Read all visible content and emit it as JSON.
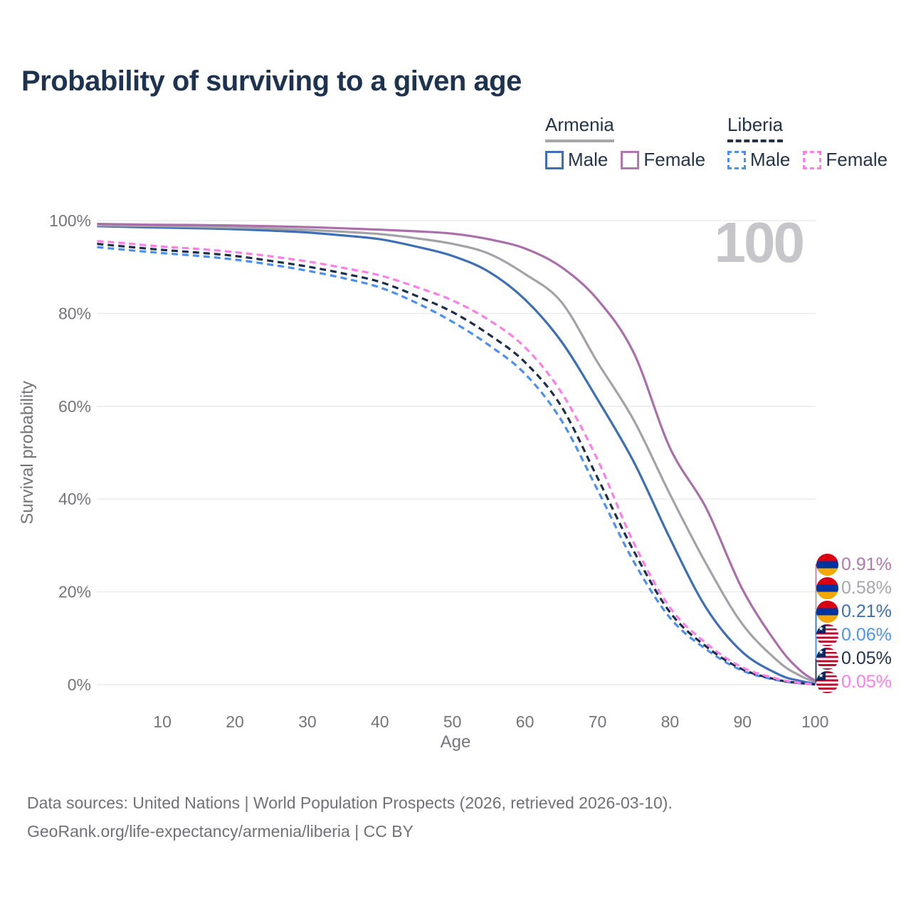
{
  "title": "Probability of surviving to a given age",
  "legend": {
    "groups": [
      {
        "name": "Armenia",
        "underline": {
          "style": "solid",
          "color": "#a7a6ab"
        },
        "items": [
          {
            "label": "Male",
            "color": "#3d6fb4",
            "dash": false
          },
          {
            "label": "Female",
            "color": "#b077af",
            "dash": false
          }
        ]
      },
      {
        "name": "Liberia",
        "underline": {
          "style": "dashed",
          "color": "#22304a"
        },
        "items": [
          {
            "label": "Male",
            "color": "#4b90ef",
            "dash": true
          },
          {
            "label": "Female",
            "color": "#fe7de9",
            "dash": true
          }
        ]
      }
    ]
  },
  "chart_data": {
    "type": "line",
    "title": "Probability of surviving to a given age",
    "xlabel": "Age",
    "ylabel": "Survival probability",
    "xlim": [
      0,
      100
    ],
    "ylim": [
      0,
      100
    ],
    "grid": "horizontal",
    "watermark": "100",
    "x_ticks": [
      10,
      20,
      30,
      40,
      50,
      60,
      70,
      80,
      90,
      100
    ],
    "y_ticks": [
      {
        "value": 0,
        "label": "0%"
      },
      {
        "value": 20,
        "label": "20%"
      },
      {
        "value": 40,
        "label": "40%"
      },
      {
        "value": 60,
        "label": "60%"
      },
      {
        "value": 80,
        "label": "80%"
      },
      {
        "value": 100,
        "label": "100%"
      }
    ],
    "series": [
      {
        "name": "Armenia Male",
        "country": "Armenia",
        "sex": "Male",
        "color": "#3d6fb4",
        "dash": false,
        "points": [
          [
            1,
            98.8
          ],
          [
            5,
            98.65
          ],
          [
            10,
            98.5
          ],
          [
            15,
            98.35
          ],
          [
            20,
            98.15
          ],
          [
            25,
            97.85
          ],
          [
            30,
            97.45
          ],
          [
            35,
            96.8
          ],
          [
            40,
            96.0
          ],
          [
            45,
            94.4
          ],
          [
            50,
            92.4
          ],
          [
            55,
            89.0
          ],
          [
            60,
            83.0
          ],
          [
            65,
            74.0
          ],
          [
            70,
            61.5
          ],
          [
            75,
            48.0
          ],
          [
            80,
            31.5
          ],
          [
            85,
            16.5
          ],
          [
            90,
            7.0
          ],
          [
            95,
            2.2
          ],
          [
            98,
            0.8
          ],
          [
            100,
            0.21
          ]
        ]
      },
      {
        "name": "Armenia Both sexes",
        "country": "Armenia",
        "sex": "Both",
        "color": "#a3a2a7",
        "dash": false,
        "points": [
          [
            1,
            99.0
          ],
          [
            5,
            98.9
          ],
          [
            10,
            98.8
          ],
          [
            15,
            98.65
          ],
          [
            20,
            98.5
          ],
          [
            25,
            98.3
          ],
          [
            30,
            98.0
          ],
          [
            35,
            97.6
          ],
          [
            40,
            97.1
          ],
          [
            45,
            96.2
          ],
          [
            50,
            95.0
          ],
          [
            55,
            92.9
          ],
          [
            60,
            88.5
          ],
          [
            65,
            82.5
          ],
          [
            70,
            69.5
          ],
          [
            75,
            57.0
          ],
          [
            80,
            41.0
          ],
          [
            85,
            26.0
          ],
          [
            90,
            13.0
          ],
          [
            95,
            4.9
          ],
          [
            98,
            1.9
          ],
          [
            100,
            0.58
          ]
        ]
      },
      {
        "name": "Armenia Female",
        "country": "Armenia",
        "sex": "Female",
        "color": "#aa6fab",
        "dash": false,
        "points": [
          [
            1,
            99.3
          ],
          [
            5,
            99.2
          ],
          [
            10,
            99.1
          ],
          [
            15,
            99.05
          ],
          [
            20,
            98.95
          ],
          [
            25,
            98.8
          ],
          [
            30,
            98.6
          ],
          [
            35,
            98.35
          ],
          [
            40,
            98.05
          ],
          [
            45,
            97.7
          ],
          [
            50,
            97.2
          ],
          [
            55,
            96.0
          ],
          [
            60,
            94.0
          ],
          [
            65,
            90.0
          ],
          [
            70,
            83.0
          ],
          [
            75,
            71.5
          ],
          [
            80,
            51.0
          ],
          [
            85,
            38.0
          ],
          [
            90,
            20.5
          ],
          [
            95,
            8.2
          ],
          [
            98,
            3.0
          ],
          [
            100,
            0.91
          ]
        ]
      },
      {
        "name": "Liberia Male",
        "country": "Liberia",
        "sex": "Male",
        "color": "#4b90ef",
        "dash": true,
        "points": [
          [
            1,
            94.3
          ],
          [
            5,
            93.7
          ],
          [
            10,
            93.0
          ],
          [
            15,
            92.4
          ],
          [
            20,
            91.6
          ],
          [
            25,
            90.5
          ],
          [
            30,
            89.2
          ],
          [
            35,
            87.6
          ],
          [
            40,
            85.6
          ],
          [
            45,
            82.3
          ],
          [
            50,
            78.2
          ],
          [
            55,
            73.2
          ],
          [
            60,
            67.0
          ],
          [
            65,
            57.0
          ],
          [
            70,
            42.0
          ],
          [
            75,
            26.5
          ],
          [
            80,
            14.4
          ],
          [
            85,
            7.6
          ],
          [
            90,
            3.0
          ],
          [
            95,
            0.9
          ],
          [
            98,
            0.3
          ],
          [
            100,
            0.06
          ]
        ]
      },
      {
        "name": "Liberia Both sexes",
        "country": "Liberia",
        "sex": "Both",
        "color": "#1e2e49",
        "dash": true,
        "points": [
          [
            1,
            95.0
          ],
          [
            5,
            94.4
          ],
          [
            10,
            93.7
          ],
          [
            15,
            93.1
          ],
          [
            20,
            92.4
          ],
          [
            25,
            91.3
          ],
          [
            30,
            90.1
          ],
          [
            35,
            88.6
          ],
          [
            40,
            86.8
          ],
          [
            45,
            83.8
          ],
          [
            50,
            80.3
          ],
          [
            55,
            75.5
          ],
          [
            60,
            69.5
          ],
          [
            65,
            60.0
          ],
          [
            70,
            44.6
          ],
          [
            75,
            28.8
          ],
          [
            80,
            15.6
          ],
          [
            85,
            8.2
          ],
          [
            90,
            3.3
          ],
          [
            95,
            1.0
          ],
          [
            98,
            0.35
          ],
          [
            100,
            0.05
          ]
        ]
      },
      {
        "name": "Liberia Female",
        "country": "Liberia",
        "sex": "Female",
        "color": "#fe7de9",
        "dash": true,
        "points": [
          [
            1,
            95.6
          ],
          [
            5,
            95.1
          ],
          [
            10,
            94.4
          ],
          [
            15,
            93.9
          ],
          [
            20,
            93.2
          ],
          [
            25,
            92.3
          ],
          [
            30,
            91.2
          ],
          [
            35,
            89.8
          ],
          [
            40,
            88.2
          ],
          [
            45,
            85.7
          ],
          [
            50,
            82.8
          ],
          [
            55,
            78.6
          ],
          [
            60,
            72.7
          ],
          [
            65,
            63.0
          ],
          [
            70,
            48.5
          ],
          [
            75,
            30.5
          ],
          [
            80,
            16.6
          ],
          [
            85,
            8.9
          ],
          [
            90,
            3.7
          ],
          [
            95,
            1.2
          ],
          [
            98,
            0.4
          ],
          [
            100,
            0.05
          ]
        ]
      }
    ],
    "end_labels": [
      {
        "flag": "armenia",
        "value": "0.91%",
        "final_pct": 0.91,
        "color": "#b179ae",
        "series": "Armenia Female"
      },
      {
        "flag": "armenia",
        "value": "0.58%",
        "final_pct": 0.58,
        "color": "#a7a6ab",
        "series": "Armenia Both sexes"
      },
      {
        "flag": "armenia",
        "value": "0.21%",
        "final_pct": 0.21,
        "color": "#3d6fb4",
        "series": "Armenia Male"
      },
      {
        "flag": "liberia",
        "value": "0.06%",
        "final_pct": 0.06,
        "color": "#4d93f2",
        "series": "Liberia Male"
      },
      {
        "flag": "liberia",
        "value": "0.05%",
        "final_pct": 0.05,
        "color": "#23334d",
        "series": "Liberia Both sexes"
      },
      {
        "flag": "liberia",
        "value": "0.05%",
        "final_pct": 0.05,
        "color": "#fe7de9",
        "series": "Liberia Female"
      }
    ]
  },
  "colors": {
    "title_text": "#1d3350",
    "axis_text": "#75747a",
    "gridline": "#eaeaec",
    "watermark": "#c6c5ca",
    "footer_text": "#717076",
    "flag_armenia": [
      "#d90012",
      "#0033a0",
      "#f2a800"
    ],
    "flag_liberia_stripe": "#bf0a30",
    "flag_liberia_canton": "#002868",
    "flag_star": "★"
  },
  "footer": {
    "line1": "Data sources: United Nations | World Population Prospects (2026, retrieved 2026-03-10).",
    "line2": "GeoRank.org/life-expectancy/armenia/liberia | CC BY"
  }
}
